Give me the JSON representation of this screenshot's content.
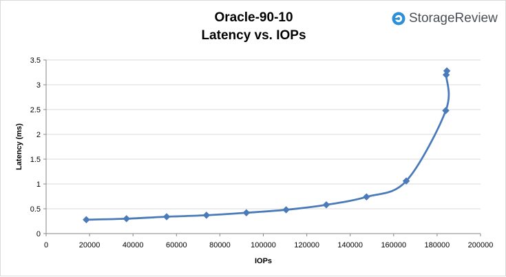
{
  "brand": {
    "name": "StorageReview",
    "icon": "storagereview-logo-icon",
    "color": "#2d8fd5"
  },
  "chart_data": {
    "type": "line",
    "title": "Oracle-90-10",
    "subtitle": "Latency vs. IOPs",
    "xlabel": "IOPs",
    "ylabel": "Latency (ms)",
    "xlim": [
      0,
      200000
    ],
    "ylim": [
      0,
      3.5
    ],
    "x_ticks": [
      0,
      20000,
      40000,
      60000,
      80000,
      100000,
      120000,
      140000,
      160000,
      180000,
      200000
    ],
    "y_ticks": [
      0,
      0.5,
      1,
      1.5,
      2,
      2.5,
      3,
      3.5
    ],
    "x_tick_labels": [
      "0",
      "20000",
      "40000",
      "60000",
      "80000",
      "100000",
      "120000",
      "140000",
      "160000",
      "180000",
      "200000"
    ],
    "y_tick_labels": [
      "0",
      "0.5",
      "1",
      "1.5",
      "2",
      "2.5",
      "3",
      "3.5"
    ],
    "grid": "horizontal",
    "series": [
      {
        "color": "#4a7ab8",
        "marker": "diamond",
        "points": [
          {
            "x": 18500,
            "y": 0.28
          },
          {
            "x": 37000,
            "y": 0.3
          },
          {
            "x": 55500,
            "y": 0.34
          },
          {
            "x": 73800,
            "y": 0.37
          },
          {
            "x": 92200,
            "y": 0.42
          },
          {
            "x": 110500,
            "y": 0.48
          },
          {
            "x": 129000,
            "y": 0.58
          },
          {
            "x": 147500,
            "y": 0.74
          },
          {
            "x": 165800,
            "y": 1.06
          },
          {
            "x": 184000,
            "y": 2.48
          },
          {
            "x": 184200,
            "y": 3.2
          },
          {
            "x": 184500,
            "y": 3.28
          }
        ]
      }
    ]
  }
}
